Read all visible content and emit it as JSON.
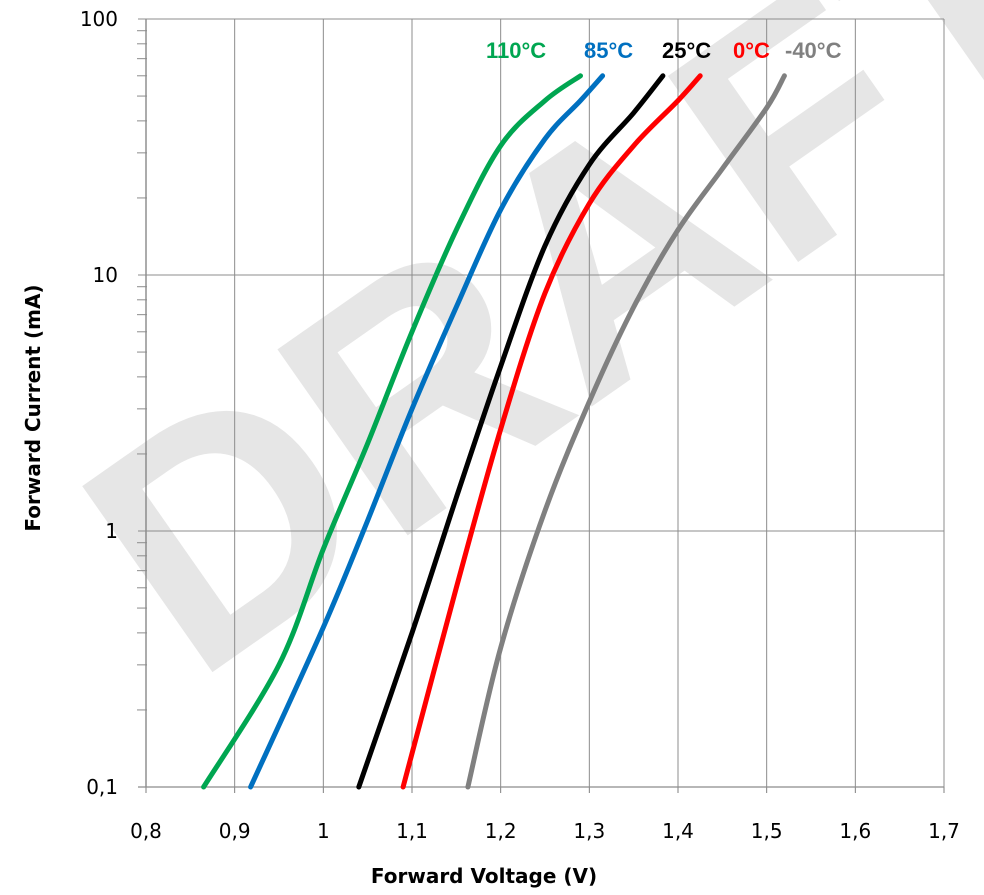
{
  "watermark": "DRAFT",
  "chart_data": {
    "type": "line",
    "xlabel": "Forward Voltage (V)",
    "ylabel": "Forward Current (mA)",
    "xlim": [
      0.8,
      1.7
    ],
    "ylim": [
      0.1,
      100
    ],
    "yscale": "log",
    "grid": true,
    "x_ticks": [
      "0,8",
      "0,9",
      "1",
      "1,1",
      "1,2",
      "1,3",
      "1,4",
      "1,5",
      "1,6",
      "1,7"
    ],
    "y_ticks": [
      "0,1",
      "1",
      "10",
      "100"
    ],
    "series": [
      {
        "name": "110°C",
        "color": "#00a651",
        "points": [
          [
            0.865,
            0.1
          ],
          [
            0.95,
            0.3
          ],
          [
            1.0,
            0.85
          ],
          [
            1.05,
            2.2
          ],
          [
            1.1,
            6
          ],
          [
            1.15,
            15
          ],
          [
            1.2,
            32
          ],
          [
            1.25,
            48
          ],
          [
            1.29,
            60
          ]
        ]
      },
      {
        "name": "85°C",
        "color": "#0070c0",
        "points": [
          [
            0.918,
            0.1
          ],
          [
            1.0,
            0.42
          ],
          [
            1.05,
            1.1
          ],
          [
            1.1,
            3.0
          ],
          [
            1.15,
            7.5
          ],
          [
            1.2,
            18
          ],
          [
            1.25,
            34
          ],
          [
            1.29,
            48
          ],
          [
            1.315,
            60
          ]
        ]
      },
      {
        "name": "25°C",
        "color": "#000000",
        "points": [
          [
            1.04,
            0.1
          ],
          [
            1.1,
            0.4
          ],
          [
            1.15,
            1.35
          ],
          [
            1.2,
            4.4
          ],
          [
            1.25,
            13
          ],
          [
            1.3,
            27
          ],
          [
            1.35,
            43
          ],
          [
            1.383,
            60
          ]
        ]
      },
      {
        "name": "0°C",
        "color": "#ff0000",
        "points": [
          [
            1.09,
            0.1
          ],
          [
            1.15,
            0.6
          ],
          [
            1.2,
            2.5
          ],
          [
            1.25,
            8.5
          ],
          [
            1.3,
            19
          ],
          [
            1.35,
            32
          ],
          [
            1.4,
            48
          ],
          [
            1.425,
            60
          ]
        ]
      },
      {
        "name": "-40°C",
        "color": "#808080",
        "points": [
          [
            1.163,
            0.1
          ],
          [
            1.2,
            0.35
          ],
          [
            1.25,
            1.2
          ],
          [
            1.3,
            3.2
          ],
          [
            1.35,
            7.5
          ],
          [
            1.4,
            15
          ],
          [
            1.45,
            26
          ],
          [
            1.5,
            45
          ],
          [
            1.52,
            60
          ]
        ]
      }
    ]
  }
}
